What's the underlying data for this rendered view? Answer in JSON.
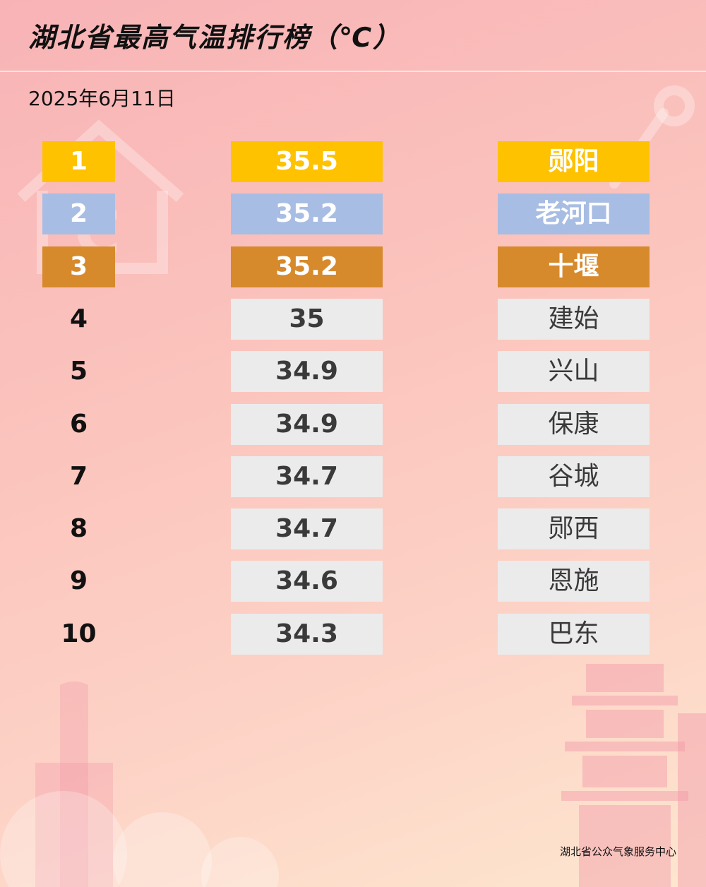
{
  "title": "湖北省最高气温排行榜（℃）",
  "date": "2025年6月11日",
  "footer": "湖北省公众气象服务中心",
  "colors": {
    "gold": "#fec200",
    "silver": "#a8bde3",
    "bronze": "#d68a2c",
    "plain": "#ebebeb"
  },
  "chart_data": {
    "type": "table",
    "title": "湖北省最高气温排行榜（℃）",
    "columns": [
      "rank",
      "value",
      "station"
    ],
    "rows": [
      {
        "rank": "1",
        "value": "35.5",
        "station": "郧阳"
      },
      {
        "rank": "2",
        "value": "35.2",
        "station": "老河口"
      },
      {
        "rank": "3",
        "value": "35.2",
        "station": "十堰"
      },
      {
        "rank": "4",
        "value": "35",
        "station": "建始"
      },
      {
        "rank": "5",
        "value": "34.9",
        "station": "兴山"
      },
      {
        "rank": "6",
        "value": "34.9",
        "station": "保康"
      },
      {
        "rank": "7",
        "value": "34.7",
        "station": "谷城"
      },
      {
        "rank": "8",
        "value": "34.7",
        "station": "郧西"
      },
      {
        "rank": "9",
        "value": "34.6",
        "station": "恩施"
      },
      {
        "rank": "10",
        "value": "34.3",
        "station": "巴东"
      }
    ]
  }
}
